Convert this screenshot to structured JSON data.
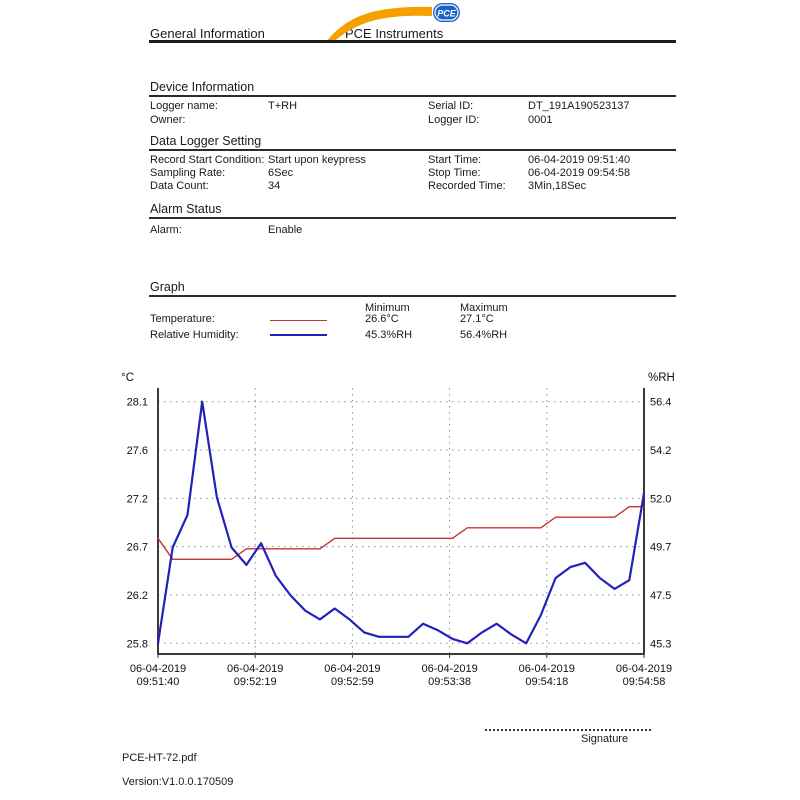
{
  "header": {
    "left_title": "General Information",
    "brand": "PCE Instruments",
    "logo_badge": "PCE"
  },
  "sections": {
    "device": {
      "title": "Device Information",
      "rows": [
        {
          "l1": "Logger name:",
          "v1": "T+RH",
          "l2": "Serial ID:",
          "v2": "DT_191A190523137"
        },
        {
          "l1": "Owner:",
          "v1": "",
          "l2": "Logger ID:",
          "v2": "0001"
        }
      ]
    },
    "settings": {
      "title": "Data Logger Setting",
      "rows": [
        {
          "l1": "Record Start Condition:",
          "v1": "Start upon keypress",
          "l2": "Start Time:",
          "v2": "06-04-2019 09:51:40"
        },
        {
          "l1": "Sampling Rate:",
          "v1": "6Sec",
          "l2": "Stop Time:",
          "v2": "06-04-2019 09:54:58"
        },
        {
          "l1": "Data Count:",
          "v1": "34",
          "l2": "Recorded Time:",
          "v2": "3Min,18Sec"
        }
      ]
    },
    "alarm": {
      "title": "Alarm Status",
      "rows": [
        {
          "l1": "Alarm:",
          "v1": "Enable",
          "l2": "",
          "v2": ""
        }
      ]
    },
    "graph": {
      "title": "Graph",
      "legend": {
        "min_header": "Minimum",
        "max_header": "Maximum",
        "rows": [
          {
            "label": "Temperature:",
            "color": "#c43434",
            "min": "26.6°C",
            "max": "27.1°C"
          },
          {
            "label": "Relative Humidity:",
            "color": "#2222bb",
            "min": "45.3%RH",
            "max": "56.4%RH"
          }
        ]
      }
    }
  },
  "chart_data": {
    "type": "line",
    "title": "",
    "grid": "dotted",
    "x_tick_labels": [
      [
        "06-04-2019",
        "09:51:40"
      ],
      [
        "06-04-2019",
        "09:52:19"
      ],
      [
        "06-04-2019",
        "09:52:59"
      ],
      [
        "06-04-2019",
        "09:53:38"
      ],
      [
        "06-04-2019",
        "09:54:18"
      ],
      [
        "06-04-2019",
        "09:54:58"
      ]
    ],
    "left_axis": {
      "label": "°C",
      "tick_labels": [
        "28.1",
        "27.6",
        "27.2",
        "26.7",
        "26.2",
        "25.8"
      ],
      "max": 28.1,
      "min": 25.8
    },
    "right_axis": {
      "label": "%RH",
      "tick_labels": [
        "56.4",
        "54.2",
        "52.0",
        "49.7",
        "47.5",
        "45.3"
      ],
      "max": 56.4,
      "min": 45.3
    },
    "series": [
      {
        "name": "Temperature",
        "axis": "left",
        "color": "#c43434",
        "stroke_width": 1.4,
        "values": [
          26.8,
          26.6,
          26.6,
          26.6,
          26.6,
          26.6,
          26.7,
          26.7,
          26.7,
          26.7,
          26.7,
          26.7,
          26.8,
          26.8,
          26.8,
          26.8,
          26.8,
          26.8,
          26.8,
          26.8,
          26.8,
          26.9,
          26.9,
          26.9,
          26.9,
          26.9,
          26.9,
          27.0,
          27.0,
          27.0,
          27.0,
          27.0,
          27.1,
          27.1
        ]
      },
      {
        "name": "Relative Humidity",
        "axis": "right",
        "color": "#2222bb",
        "stroke_width": 2.2,
        "values": [
          45.3,
          49.7,
          51.2,
          56.4,
          52.0,
          49.7,
          48.9,
          49.9,
          48.4,
          47.5,
          46.8,
          46.4,
          46.9,
          46.4,
          45.8,
          45.6,
          45.6,
          45.6,
          46.2,
          45.9,
          45.5,
          45.3,
          45.8,
          46.2,
          45.7,
          45.3,
          46.6,
          48.3,
          48.8,
          49.0,
          48.3,
          47.8,
          48.2,
          52.2
        ]
      }
    ]
  },
  "footer": {
    "signature_label": "Signature",
    "file_name": "PCE-HT-72.pdf",
    "version": "Version:V1.0.0.170509"
  }
}
